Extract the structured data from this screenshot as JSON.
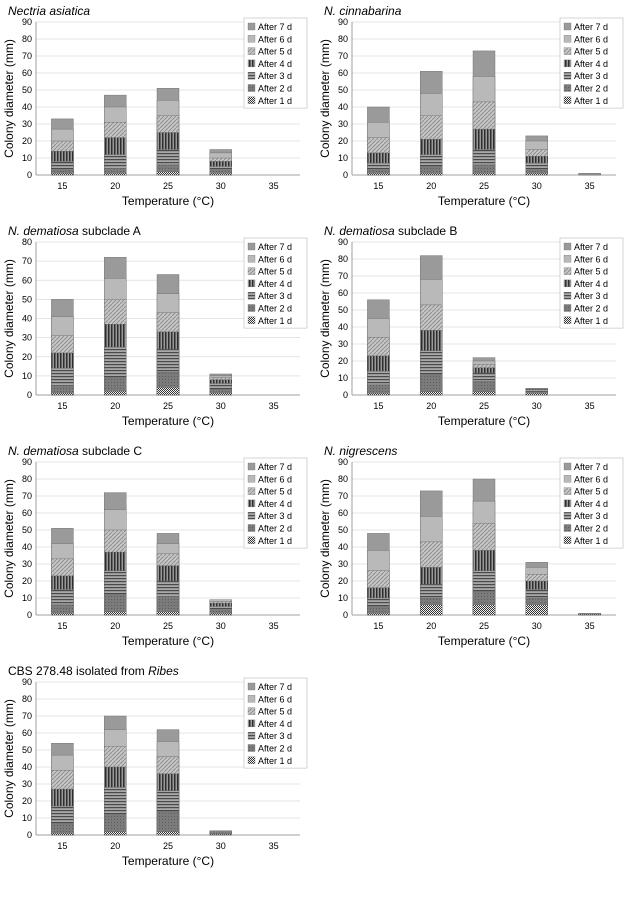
{
  "legend_labels": [
    "After 7 d",
    "After 6 d",
    "After 5 d",
    "After 4 d",
    "After 3 d",
    "After 2 d",
    "After 1 d"
  ],
  "chart_data": [
    {
      "type": "bar",
      "title_parts": [
        {
          "text": "Nectria asiatica",
          "italic": true
        }
      ],
      "xlabel": "Temperature (°C)",
      "ylabel": "Colony diameter (mm)",
      "categories": [
        "15",
        "20",
        "25",
        "30",
        "35"
      ],
      "ylim": [
        0,
        90
      ],
      "yticks": [
        0,
        10,
        20,
        30,
        40,
        50,
        60,
        70,
        80,
        90
      ],
      "grid": true,
      "legend": "top-right",
      "series": [
        {
          "name": "After 1 d",
          "values": [
            1,
            1,
            2,
            1,
            0
          ]
        },
        {
          "name": "After 2 d",
          "values": [
            3,
            4,
            6,
            3,
            0
          ]
        },
        {
          "name": "After 3 d",
          "values": [
            8,
            12,
            15,
            5,
            0
          ]
        },
        {
          "name": "After 4 d",
          "values": [
            14,
            22,
            25,
            8,
            0
          ]
        },
        {
          "name": "After 5 d",
          "values": [
            20,
            31,
            35,
            10,
            0
          ]
        },
        {
          "name": "After 6 d",
          "values": [
            27,
            40,
            44,
            13,
            0
          ]
        },
        {
          "name": "After 7 d",
          "values": [
            33,
            47,
            51,
            15,
            0
          ]
        }
      ]
    },
    {
      "type": "bar",
      "title_parts": [
        {
          "text": "N. cinnabarina",
          "italic": true
        }
      ],
      "xlabel": "Temperature (°C)",
      "ylabel": "Colony diameter (mm)",
      "categories": [
        "15",
        "20",
        "25",
        "30",
        "35"
      ],
      "ylim": [
        0,
        90
      ],
      "yticks": [
        0,
        10,
        20,
        30,
        40,
        50,
        60,
        70,
        80,
        90
      ],
      "grid": true,
      "legend": "top-right",
      "series": [
        {
          "name": "After 1 d",
          "values": [
            1,
            1,
            1,
            1,
            0
          ]
        },
        {
          "name": "After 2 d",
          "values": [
            3,
            5,
            6,
            3,
            0
          ]
        },
        {
          "name": "After 3 d",
          "values": [
            7,
            12,
            15,
            7,
            0
          ]
        },
        {
          "name": "After 4 d",
          "values": [
            13,
            21,
            27,
            11,
            0
          ]
        },
        {
          "name": "After 5 d",
          "values": [
            22,
            35,
            43,
            15,
            0
          ]
        },
        {
          "name": "After 6 d",
          "values": [
            31,
            48,
            58,
            20,
            0.5
          ]
        },
        {
          "name": "After 7 d",
          "values": [
            40,
            61,
            73,
            23,
            1
          ]
        }
      ]
    },
    {
      "type": "bar",
      "title_parts": [
        {
          "text": "N. dematiosa",
          "italic": true
        },
        {
          "text": " subclade A",
          "italic": false
        }
      ],
      "xlabel": "Temperature (°C)",
      "ylabel": "Colony diameter (mm)",
      "categories": [
        "15",
        "20",
        "25",
        "30",
        "35"
      ],
      "ylim": [
        0,
        80
      ],
      "yticks": [
        0,
        10,
        20,
        30,
        40,
        50,
        60,
        70,
        80
      ],
      "grid": true,
      "legend": "top-right",
      "series": [
        {
          "name": "After 1 d",
          "values": [
            1,
            2,
            4,
            1,
            0
          ]
        },
        {
          "name": "After 2 d",
          "values": [
            5,
            9,
            12,
            3,
            0
          ]
        },
        {
          "name": "After 3 d",
          "values": [
            14,
            25,
            24,
            6,
            0
          ]
        },
        {
          "name": "After 4 d",
          "values": [
            22,
            37,
            33,
            8,
            0
          ]
        },
        {
          "name": "After 5 d",
          "values": [
            31,
            50,
            43,
            9,
            0
          ]
        },
        {
          "name": "After 6 d",
          "values": [
            41,
            61,
            53,
            10,
            0
          ]
        },
        {
          "name": "After 7 d",
          "values": [
            50,
            72,
            63,
            11,
            0
          ]
        }
      ]
    },
    {
      "type": "bar",
      "title_parts": [
        {
          "text": "N. dematiosa",
          "italic": true
        },
        {
          "text": " subclade B",
          "italic": false
        }
      ],
      "xlabel": "Temperature (°C)",
      "ylabel": "Colony diameter (mm)",
      "categories": [
        "15",
        "20",
        "25",
        "30",
        "35"
      ],
      "ylim": [
        0,
        90
      ],
      "yticks": [
        0,
        10,
        20,
        30,
        40,
        50,
        60,
        70,
        80,
        90
      ],
      "grid": true,
      "legend": "top-right",
      "series": [
        {
          "name": "After 1 d",
          "values": [
            1,
            2,
            2,
            1,
            0
          ]
        },
        {
          "name": "After 2 d",
          "values": [
            6,
            12,
            8,
            2,
            0
          ]
        },
        {
          "name": "After 3 d",
          "values": [
            14,
            26,
            13,
            3,
            0
          ]
        },
        {
          "name": "After 4 d",
          "values": [
            23,
            38,
            16,
            3.5,
            0
          ]
        },
        {
          "name": "After 5 d",
          "values": [
            34,
            53,
            18,
            3.5,
            0
          ]
        },
        {
          "name": "After 6 d",
          "values": [
            45,
            68,
            20,
            4,
            0
          ]
        },
        {
          "name": "After 7 d",
          "values": [
            56,
            82,
            22,
            4,
            0
          ]
        }
      ]
    },
    {
      "type": "bar",
      "title_parts": [
        {
          "text": "N. dematiosa",
          "italic": true
        },
        {
          "text": " subclade C",
          "italic": false
        }
      ],
      "xlabel": "Temperature (°C)",
      "ylabel": "Colony diameter (mm)",
      "categories": [
        "15",
        "20",
        "25",
        "30",
        "35"
      ],
      "ylim": [
        0,
        90
      ],
      "yticks": [
        0,
        10,
        20,
        30,
        40,
        50,
        60,
        70,
        80,
        90
      ],
      "grid": true,
      "legend": "top-right",
      "series": [
        {
          "name": "After 1 d",
          "values": [
            1,
            2,
            2,
            1,
            0
          ]
        },
        {
          "name": "After 2 d",
          "values": [
            6,
            12,
            11,
            3,
            0
          ]
        },
        {
          "name": "After 3 d",
          "values": [
            15,
            26,
            20,
            5,
            0
          ]
        },
        {
          "name": "After 4 d",
          "values": [
            23,
            37,
            29,
            7,
            0
          ]
        },
        {
          "name": "After 5 d",
          "values": [
            33,
            50,
            36,
            8,
            0
          ]
        },
        {
          "name": "After 6 d",
          "values": [
            42,
            62,
            42,
            9,
            0
          ]
        },
        {
          "name": "After 7 d",
          "values": [
            51,
            72,
            48,
            9,
            0
          ]
        }
      ]
    },
    {
      "type": "bar",
      "title_parts": [
        {
          "text": "N. nigrescens",
          "italic": true
        }
      ],
      "xlabel": "Temperature (°C)",
      "ylabel": "Colony diameter (mm)",
      "categories": [
        "15",
        "20",
        "25",
        "30",
        "35"
      ],
      "ylim": [
        0,
        90
      ],
      "yticks": [
        0,
        10,
        20,
        30,
        40,
        50,
        60,
        70,
        80,
        90
      ],
      "grid": true,
      "legend": "top-right",
      "series": [
        {
          "name": "After 1 d",
          "values": [
            1,
            6,
            6,
            6,
            0.5
          ]
        },
        {
          "name": "After 2 d",
          "values": [
            5,
            10,
            14,
            10,
            0.5
          ]
        },
        {
          "name": "After 3 d",
          "values": [
            10,
            18,
            26,
            15,
            1
          ]
        },
        {
          "name": "After 4 d",
          "values": [
            16,
            28,
            38,
            20,
            1
          ]
        },
        {
          "name": "After 5 d",
          "values": [
            26,
            43,
            54,
            24,
            1
          ]
        },
        {
          "name": "After 6 d",
          "values": [
            38,
            58,
            67,
            28,
            1
          ]
        },
        {
          "name": "After 7 d",
          "values": [
            48,
            73,
            80,
            31,
            1
          ]
        }
      ]
    },
    {
      "type": "bar",
      "title_parts": [
        {
          "text": "CBS 278.48 isolated from ",
          "italic": false
        },
        {
          "text": "Ribes",
          "italic": true
        }
      ],
      "xlabel": "Temperature (°C)",
      "ylabel": "Colony diameter (mm)",
      "categories": [
        "15",
        "20",
        "25",
        "30",
        "35"
      ],
      "ylim": [
        0,
        90
      ],
      "yticks": [
        0,
        10,
        20,
        30,
        40,
        50,
        60,
        70,
        80,
        90
      ],
      "grid": true,
      "legend": "top-right",
      "series": [
        {
          "name": "After 1 d",
          "values": [
            1,
            2,
            2,
            0.5,
            0
          ]
        },
        {
          "name": "After 2 d",
          "values": [
            7,
            12,
            14,
            1,
            0
          ]
        },
        {
          "name": "After 3 d",
          "values": [
            17,
            28,
            26,
            1.5,
            0
          ]
        },
        {
          "name": "After 4 d",
          "values": [
            27,
            40,
            36,
            2,
            0
          ]
        },
        {
          "name": "After 5 d",
          "values": [
            38,
            52,
            46,
            2,
            0
          ]
        },
        {
          "name": "After 6 d",
          "values": [
            47,
            62,
            55,
            2.5,
            0
          ]
        },
        {
          "name": "After 7 d",
          "values": [
            54,
            70,
            62,
            2.5,
            0
          ]
        }
      ]
    }
  ]
}
